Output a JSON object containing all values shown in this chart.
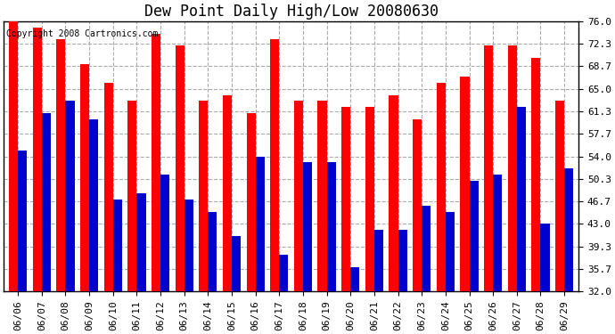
{
  "title": "Dew Point Daily High/Low 20080630",
  "copyright": "Copyright 2008 Cartronics.com",
  "dates": [
    "06/06",
    "06/07",
    "06/08",
    "06/09",
    "06/10",
    "06/11",
    "06/12",
    "06/13",
    "06/14",
    "06/15",
    "06/16",
    "06/17",
    "06/18",
    "06/19",
    "06/20",
    "06/21",
    "06/22",
    "06/23",
    "06/24",
    "06/25",
    "06/26",
    "06/27",
    "06/28",
    "06/29"
  ],
  "highs": [
    76,
    75,
    73,
    69,
    66,
    63,
    74,
    72,
    63,
    64,
    61,
    73,
    63,
    63,
    62,
    62,
    64,
    60,
    66,
    67,
    72,
    72,
    70,
    63
  ],
  "lows": [
    55,
    61,
    63,
    60,
    47,
    48,
    51,
    47,
    45,
    41,
    54,
    38,
    53,
    53,
    36,
    42,
    42,
    46,
    45,
    50,
    51,
    62,
    43,
    52
  ],
  "ymin": 32.0,
  "ymax": 76.0,
  "yticks": [
    32.0,
    35.7,
    39.3,
    43.0,
    46.7,
    50.3,
    54.0,
    57.7,
    61.3,
    65.0,
    68.7,
    72.3,
    76.0
  ],
  "bar_width": 0.38,
  "high_color": "#ff0000",
  "low_color": "#0000cc",
  "bg_color": "#ffffff",
  "plot_bg_color": "#ffffff",
  "grid_color": "#aaaaaa",
  "title_fontsize": 12,
  "tick_fontsize": 8,
  "copyright_fontsize": 7
}
